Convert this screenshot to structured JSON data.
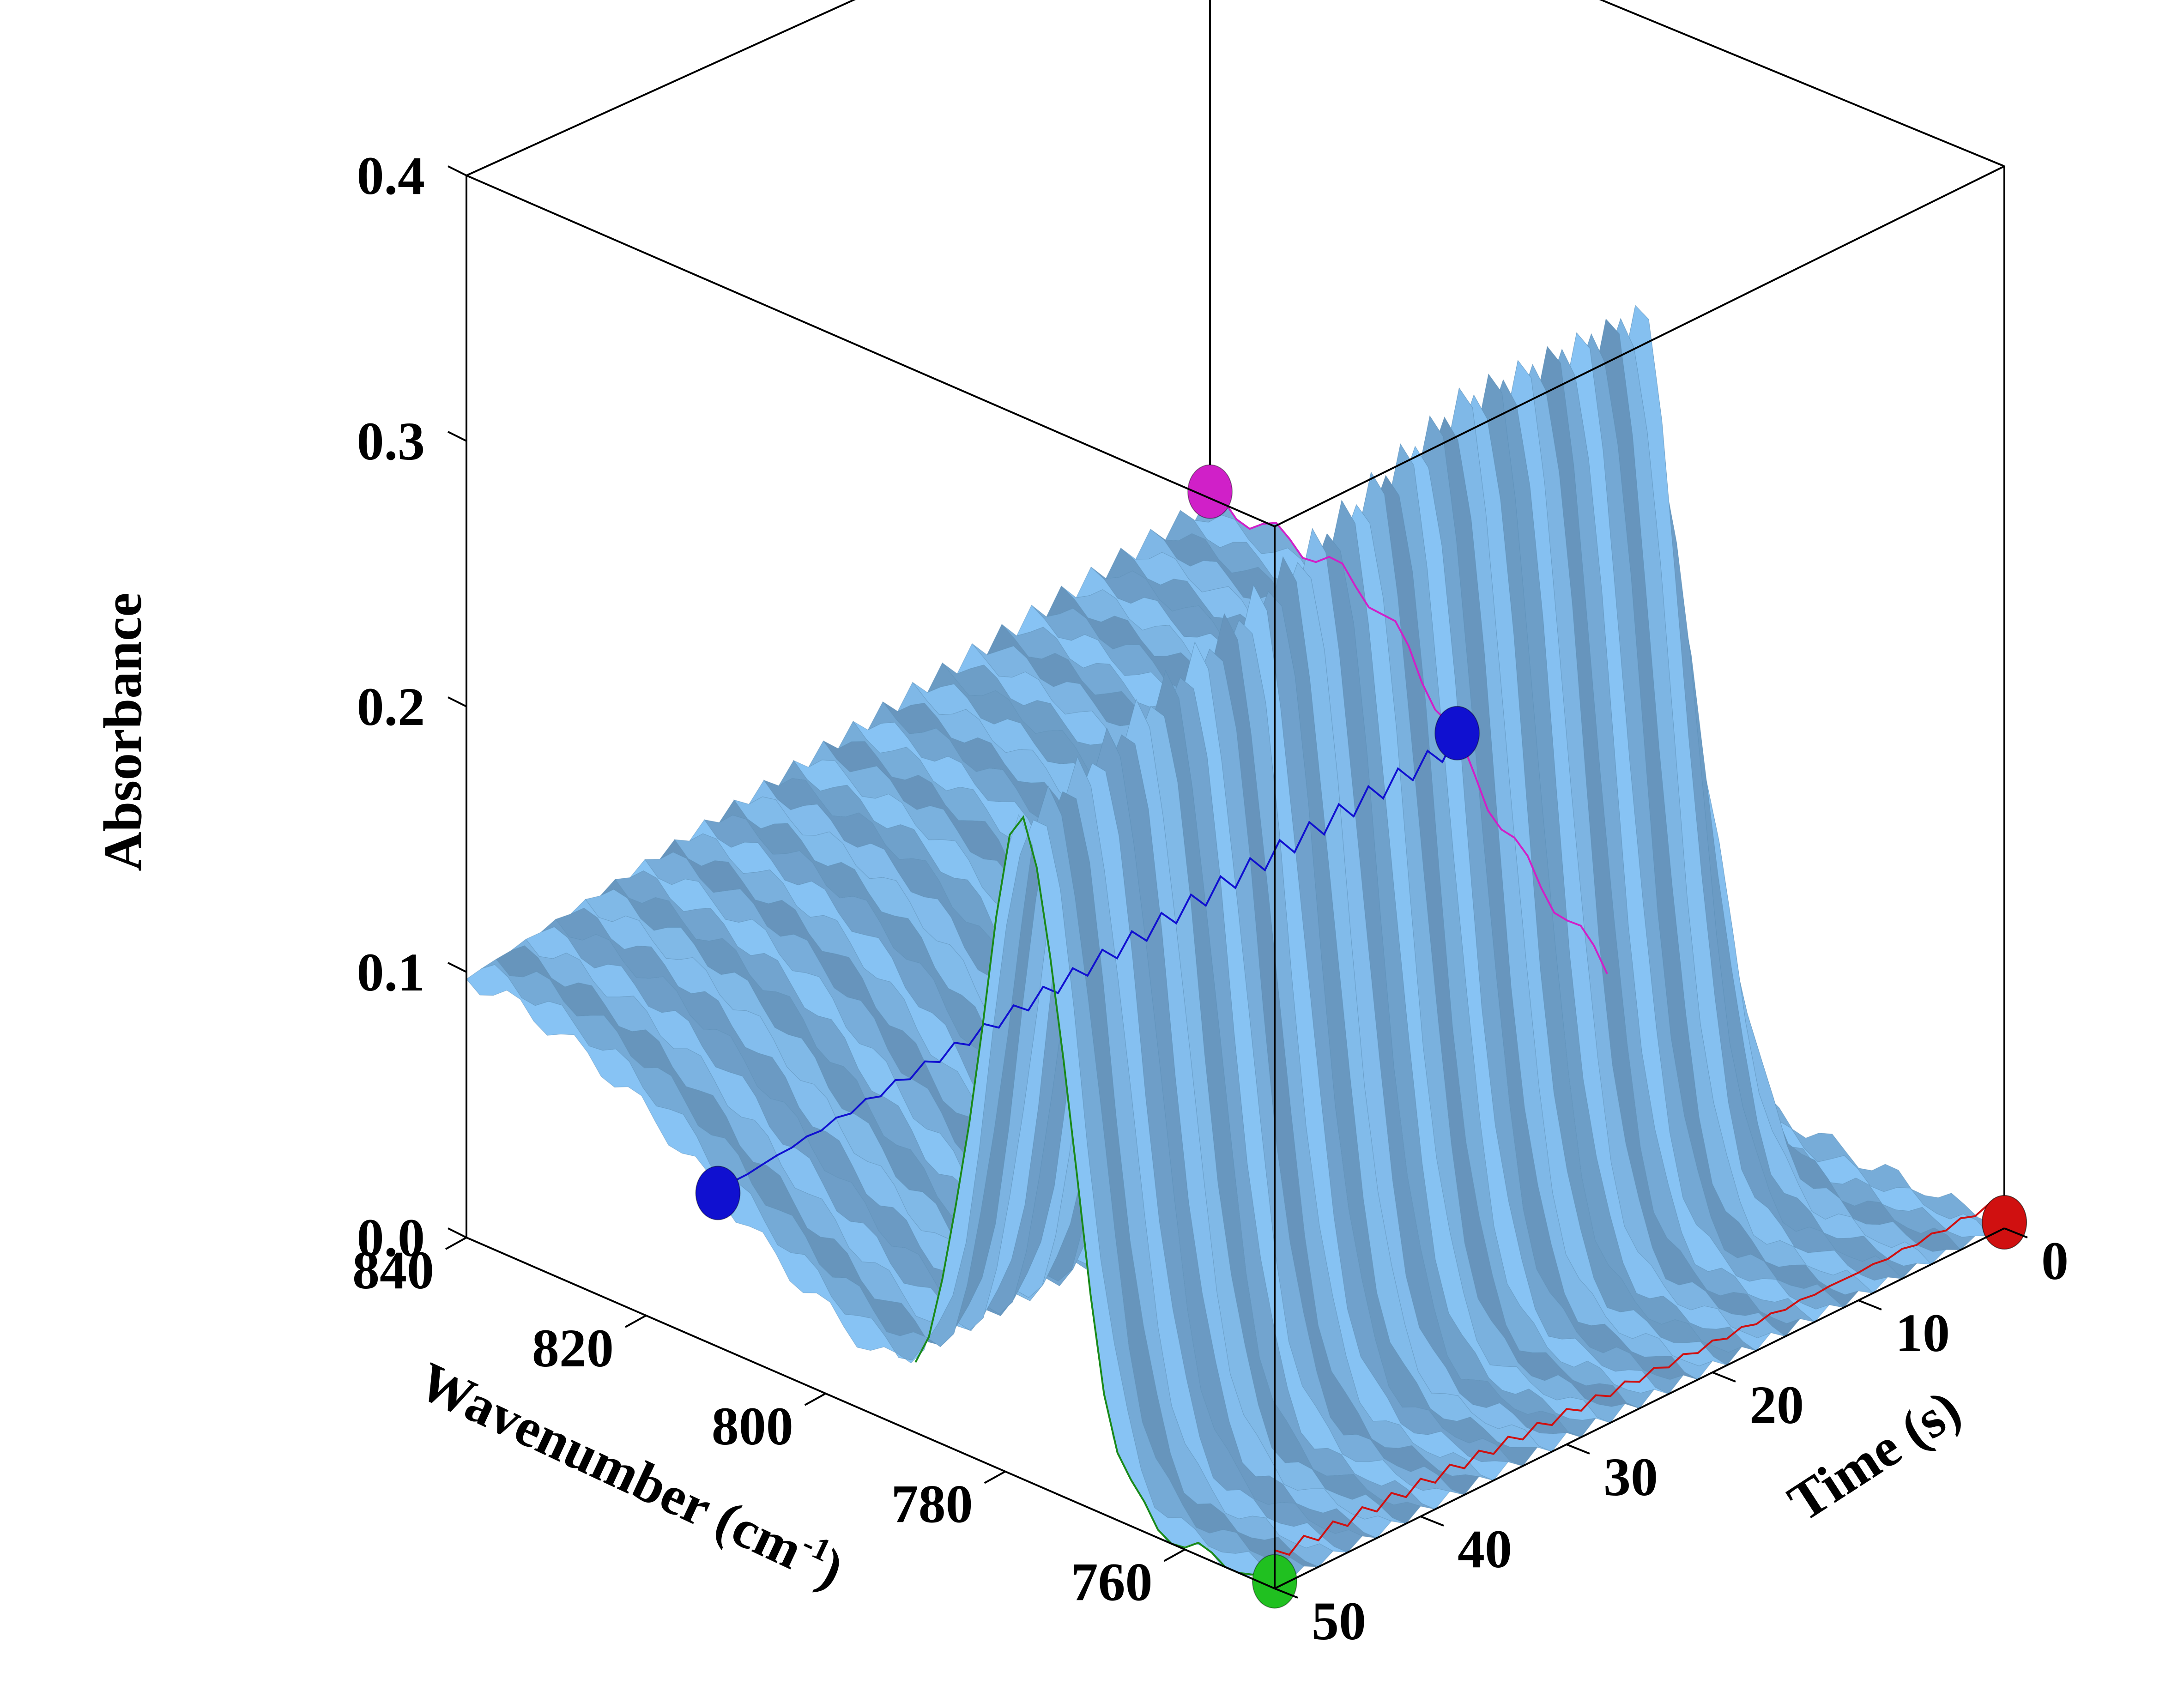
{
  "chart_data": {
    "type": "surface",
    "title": "",
    "zlabel": "Absorbance",
    "xlabel": "Wavenumber (cm-1)",
    "xlabel_base": "Wavenumber (cm",
    "xlabel_sup": "-1",
    "xlabel_end": ")",
    "ylabel": "Time (s)",
    "z_ticks": [
      "0.0",
      "0.1",
      "0.2",
      "0.3",
      "0.4"
    ],
    "z_tick_values": [
      0.0,
      0.1,
      0.2,
      0.3,
      0.4
    ],
    "x_ticks": [
      "840",
      "820",
      "800",
      "780",
      "760"
    ],
    "x_tick_values": [
      840,
      820,
      800,
      780,
      760
    ],
    "y_ticks": [
      "0",
      "10",
      "20",
      "30",
      "40",
      "50"
    ],
    "y_tick_values": [
      0,
      10,
      20,
      30,
      40,
      50
    ],
    "x_range": [
      840,
      750
    ],
    "y_range": [
      0,
      50
    ],
    "z_range": [
      0,
      0.4
    ],
    "surface_color": "#87c3ea",
    "surface_edge": "#5a8fb6",
    "peak": {
      "wavenumber": 778,
      "time_start": 8,
      "max_absorbance": 0.32
    },
    "baseline_at_840": 0.15,
    "markers": [
      {
        "name": "magenta",
        "color": "#d020c8",
        "wavenumber": 840,
        "time": 0
      },
      {
        "name": "blue-back",
        "color": "#1010d0",
        "wavenumber": 812,
        "time": 0
      },
      {
        "name": "blue-front",
        "color": "#1010d0",
        "wavenumber": 812,
        "time": 50
      },
      {
        "name": "green-front",
        "color": "#20c020",
        "wavenumber": 750,
        "time": 50
      },
      {
        "name": "green-right",
        "color": "#20c020",
        "wavenumber": 750,
        "time": 0
      },
      {
        "name": "red",
        "color": "#d01010",
        "wavenumber": 750,
        "time": 0
      }
    ]
  }
}
